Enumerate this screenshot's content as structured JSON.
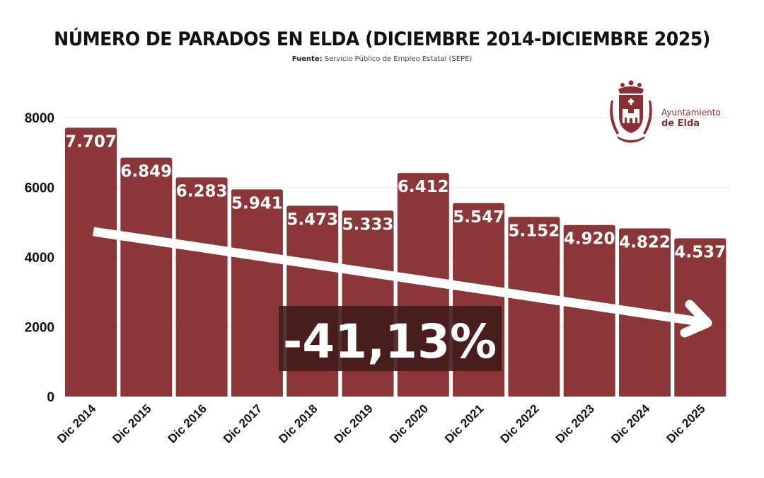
{
  "title": "NÚMERO DE PARADOS EN ELDA (DICIEMBRE 2014-DICIEMBRE 2025)",
  "source_label": "Fuente:",
  "source_text": "Servicio Público de Empleo Estatal (SEPE)",
  "logo": {
    "line1": "Ayuntamiento",
    "line2": "de Elda"
  },
  "colors": {
    "bar": "#8b3638",
    "badge": "#421b1b",
    "text": "#111111",
    "grid": "#e6e6e6"
  },
  "chart_data": {
    "type": "bar",
    "title": "NÚMERO DE PARADOS EN ELDA (DICIEMBRE 2014-DICIEMBRE 2025)",
    "xlabel": "",
    "ylabel": "",
    "categories": [
      "Dic 2014",
      "Dic 2015",
      "Dic 2016",
      "Dic 2017",
      "Dic 2018",
      "Dic 2019",
      "Dic 2020",
      "Dic 2021",
      "Dic 2022",
      "Dic 2023",
      "Dic 2024",
      "Dic 2025"
    ],
    "values": [
      7707,
      6849,
      6283,
      5941,
      5473,
      5333,
      6412,
      5547,
      5152,
      4920,
      4822,
      4537
    ],
    "data_labels": [
      "7.707",
      "6.849",
      "6.283",
      "5.941",
      "5.473",
      "5.333",
      "6.412",
      "5.547",
      "5.152",
      "4.920",
      "4.822",
      "4.537"
    ],
    "ylim": [
      0,
      8000
    ],
    "yticks": [
      0,
      2000,
      4000,
      6000,
      8000
    ],
    "ytick_labels": [
      "0",
      "2000",
      "4000",
      "6000",
      "8000"
    ],
    "grid": true,
    "legend": "none",
    "annotation": {
      "text": "-41,13%",
      "trend_arrow": "downward",
      "arrow_from": "Dic 2014",
      "arrow_to": "Dic 2025"
    }
  }
}
